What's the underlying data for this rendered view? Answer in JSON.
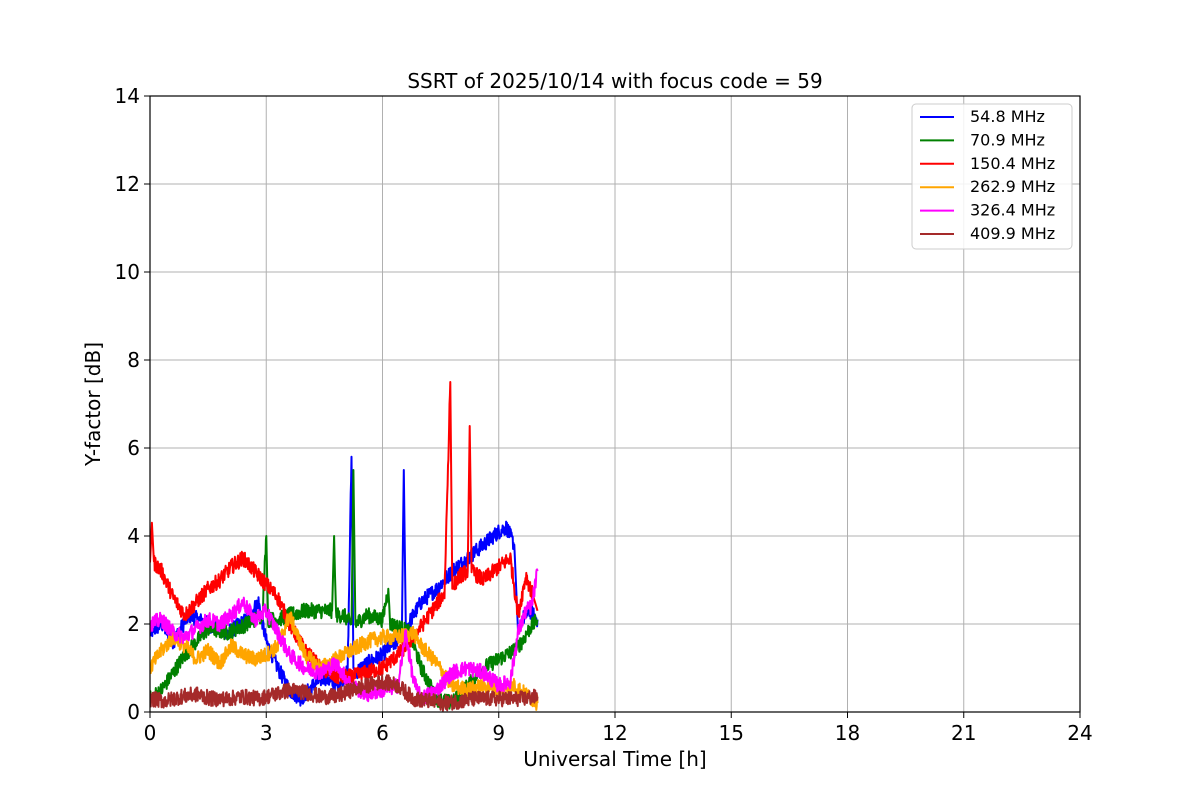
{
  "chart_data": {
    "type": "line",
    "title": "SSRT of 2025/10/14 with focus code = 59",
    "xlabel": "Universal Time [h]",
    "ylabel": "Y-factor [dB]",
    "xlim": [
      0,
      24
    ],
    "ylim": [
      0,
      14
    ],
    "xticks": [
      0,
      3,
      6,
      9,
      12,
      15,
      18,
      21,
      24
    ],
    "yticks": [
      0,
      2,
      4,
      6,
      8,
      10,
      12,
      14
    ],
    "grid": true,
    "legend_position": "top-right",
    "series": [
      {
        "name": " 54.8 MHz",
        "color": "#0000ff",
        "x": [
          0,
          0.3,
          0.6,
          1.0,
          1.5,
          2.0,
          2.5,
          2.8,
          3.0,
          3.3,
          3.6,
          3.9,
          4.2,
          4.5,
          4.8,
          5.1,
          5.2,
          5.25,
          5.3,
          5.6,
          6.0,
          6.2,
          6.4,
          6.5,
          6.55,
          6.6,
          6.8,
          7.0,
          7.4,
          7.8,
          8.2,
          8.6,
          9.0,
          9.2,
          9.4,
          9.5,
          9.6,
          9.8,
          10.0
        ],
        "y": [
          1.8,
          2.0,
          1.6,
          2.2,
          2.0,
          1.8,
          2.1,
          2.5,
          1.6,
          1.0,
          0.5,
          0.3,
          0.6,
          0.8,
          0.6,
          0.9,
          5.8,
          1.0,
          0.9,
          1.1,
          1.3,
          1.5,
          1.6,
          1.8,
          5.5,
          1.9,
          2.2,
          2.5,
          2.8,
          3.2,
          3.5,
          3.8,
          4.1,
          4.2,
          3.8,
          1.8,
          2.1,
          2.3,
          2.1
        ]
      },
      {
        "name": " 70.9 MHz",
        "color": "#008000",
        "x": [
          0,
          0.3,
          0.6,
          0.9,
          1.2,
          1.5,
          2.0,
          2.5,
          2.9,
          3.0,
          3.05,
          3.3,
          3.6,
          4.0,
          4.4,
          4.7,
          4.75,
          4.8,
          5.0,
          5.2,
          5.25,
          5.3,
          5.6,
          6.0,
          6.15,
          6.2,
          6.5,
          6.7,
          7.0,
          7.4,
          7.8,
          8.2,
          8.6,
          9.0,
          9.4,
          9.6,
          9.8,
          10.0
        ],
        "y": [
          0.3,
          0.5,
          0.9,
          1.3,
          1.6,
          1.9,
          1.8,
          2.0,
          2.2,
          4.0,
          2.1,
          2.1,
          2.2,
          2.3,
          2.3,
          2.3,
          4.0,
          2.2,
          2.2,
          2.0,
          5.5,
          2.0,
          2.2,
          2.1,
          2.8,
          2.0,
          1.9,
          1.8,
          1.0,
          0.3,
          0.2,
          0.6,
          1.0,
          1.2,
          1.4,
          1.6,
          1.9,
          2.1
        ]
      },
      {
        "name": " 150.4 MHz",
        "color": "#ff0000",
        "x": [
          0,
          0.05,
          0.1,
          0.3,
          0.6,
          0.9,
          1.2,
          1.5,
          1.8,
          2.1,
          2.4,
          2.7,
          3.0,
          3.3,
          3.6,
          4.0,
          4.4,
          4.8,
          5.2,
          5.6,
          6.0,
          6.4,
          6.8,
          7.2,
          7.6,
          7.75,
          7.8,
          7.85,
          8.0,
          8.2,
          8.25,
          8.3,
          8.6,
          9.0,
          9.3,
          9.5,
          9.7,
          9.9,
          10.0
        ],
        "y": [
          3.4,
          4.3,
          3.4,
          3.2,
          2.6,
          2.2,
          2.5,
          2.8,
          3.0,
          3.3,
          3.5,
          3.2,
          2.9,
          2.6,
          2.0,
          1.4,
          1.0,
          0.8,
          0.8,
          0.9,
          1.0,
          1.3,
          1.7,
          2.2,
          2.7,
          7.5,
          2.8,
          2.9,
          3.1,
          3.2,
          6.5,
          3.2,
          3.0,
          3.3,
          3.5,
          2.2,
          3.1,
          2.6,
          2.3
        ]
      },
      {
        "name": " 262.9 MHz",
        "color": "#ffa500",
        "x": [
          0,
          0.3,
          0.6,
          0.9,
          1.2,
          1.5,
          1.8,
          2.1,
          2.4,
          2.7,
          3.0,
          3.3,
          3.6,
          4.0,
          4.4,
          4.8,
          5.2,
          5.6,
          6.0,
          6.4,
          6.8,
          7.0,
          7.4,
          7.8,
          8.2,
          8.6,
          9.0,
          9.4,
          9.7,
          10.0
        ],
        "y": [
          1.0,
          1.4,
          1.7,
          1.5,
          1.2,
          1.4,
          1.1,
          1.5,
          1.3,
          1.2,
          1.3,
          1.5,
          2.2,
          1.3,
          1.0,
          1.2,
          1.4,
          1.6,
          1.7,
          1.7,
          1.8,
          1.5,
          1.1,
          0.6,
          0.5,
          0.6,
          0.5,
          0.6,
          0.4,
          0.2
        ]
      },
      {
        "name": " 326.4 MHz",
        "color": "#ff00ff",
        "x": [
          0,
          0.3,
          0.6,
          0.9,
          1.2,
          1.5,
          1.8,
          2.1,
          2.4,
          2.7,
          3.0,
          3.3,
          3.6,
          4.0,
          4.4,
          4.8,
          5.2,
          5.6,
          6.0,
          6.4,
          6.6,
          6.8,
          7.0,
          7.4,
          7.8,
          8.2,
          8.6,
          9.0,
          9.3,
          9.5,
          9.7,
          9.85,
          10.0
        ],
        "y": [
          2.0,
          2.1,
          1.8,
          1.7,
          1.9,
          2.1,
          2.0,
          2.2,
          2.5,
          2.1,
          2.3,
          1.8,
          1.3,
          1.0,
          0.9,
          1.1,
          0.6,
          0.4,
          0.5,
          0.6,
          1.8,
          0.7,
          0.3,
          0.5,
          0.9,
          1.0,
          0.9,
          0.6,
          0.7,
          1.8,
          2.3,
          2.4,
          3.2
        ]
      },
      {
        "name": " 409.9 MHz",
        "color": "#a52a2a",
        "x": [
          0,
          0.4,
          0.8,
          1.2,
          1.6,
          2.0,
          2.4,
          2.8,
          3.2,
          3.6,
          4.0,
          4.4,
          4.8,
          5.2,
          5.6,
          6.0,
          6.4,
          6.8,
          7.2,
          7.6,
          8.0,
          8.4,
          8.8,
          9.2,
          9.6,
          10.0
        ],
        "y": [
          0.3,
          0.25,
          0.35,
          0.4,
          0.3,
          0.3,
          0.35,
          0.3,
          0.4,
          0.5,
          0.45,
          0.35,
          0.35,
          0.5,
          0.6,
          0.7,
          0.6,
          0.3,
          0.25,
          0.2,
          0.25,
          0.3,
          0.3,
          0.3,
          0.3,
          0.35
        ]
      }
    ]
  }
}
